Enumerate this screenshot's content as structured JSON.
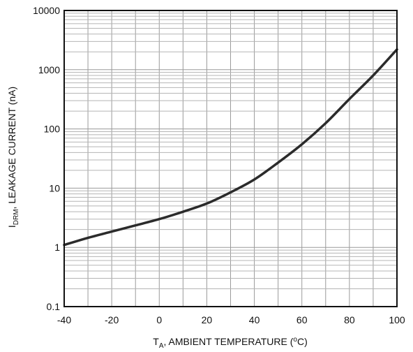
{
  "chart_data": {
    "type": "line",
    "x_axis": {
      "label_main": "T",
      "label_sub": "A",
      "label_rest": ", AMBIENT TEMPERATURE (",
      "label_sup": "o",
      "label_end": "C)",
      "range": [
        -40,
        100
      ],
      "ticks": [
        -40,
        -20,
        0,
        20,
        40,
        60,
        80,
        100
      ],
      "tick_labels": [
        "-40",
        "-20",
        "0",
        "20",
        "40",
        "60",
        "80",
        "100"
      ]
    },
    "y_axis": {
      "label_main": "I",
      "label_sub": "DRM",
      "label_rest": ", LEAKAGE CURRENT (nA)",
      "scale": "log",
      "range": [
        0.1,
        10000
      ],
      "ticks": [
        0.1,
        1,
        10,
        100,
        1000,
        10000
      ],
      "tick_labels": [
        "0.1",
        "1",
        "10",
        "100",
        "1000",
        "10000"
      ]
    },
    "grid": true,
    "series": [
      {
        "x": [
          -40,
          -30,
          -20,
          -10,
          0,
          10,
          20,
          30,
          40,
          50,
          60,
          70,
          80,
          90,
          100
        ],
        "y": [
          1.1,
          1.45,
          1.85,
          2.35,
          3.0,
          4.0,
          5.5,
          8.5,
          14,
          27,
          55,
          125,
          320,
          800,
          2200
        ]
      }
    ],
    "colors": {
      "line": "#2b2b2b",
      "frame": "#111111",
      "grid_major": "#9a9a9a",
      "grid_minor": "#b5b5b5"
    }
  }
}
